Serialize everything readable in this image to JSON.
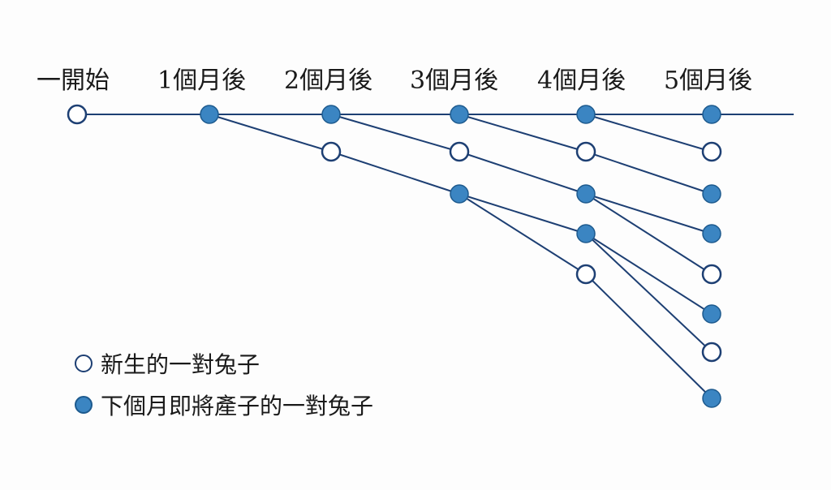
{
  "colors": {
    "line": "#1d3f73",
    "filled_node": "#3b85c2",
    "filled_stroke": "#1d5a8e",
    "open_node_fill": "#ffffff",
    "text": "#1a1a1a"
  },
  "months": [
    {
      "label": "一開始"
    },
    {
      "label": "1個月後"
    },
    {
      "label": "2個月後"
    },
    {
      "label": "3個月後"
    },
    {
      "label": "4個月後"
    },
    {
      "label": "5個月後"
    }
  ],
  "nodes": [
    {
      "id": "m0",
      "month": 0,
      "type": "newborn"
    },
    {
      "id": "m1",
      "month": 1,
      "type": "mature"
    },
    {
      "id": "m2a",
      "month": 2,
      "type": "mature"
    },
    {
      "id": "m2b",
      "month": 2,
      "type": "newborn"
    },
    {
      "id": "m3a",
      "month": 3,
      "type": "mature"
    },
    {
      "id": "m3b",
      "month": 3,
      "type": "newborn"
    },
    {
      "id": "m3c",
      "month": 3,
      "type": "mature"
    },
    {
      "id": "m4a",
      "month": 4,
      "type": "mature"
    },
    {
      "id": "m4b",
      "month": 4,
      "type": "newborn"
    },
    {
      "id": "m4c",
      "month": 4,
      "type": "mature"
    },
    {
      "id": "m4d",
      "month": 4,
      "type": "mature"
    },
    {
      "id": "m4e",
      "month": 4,
      "type": "newborn"
    },
    {
      "id": "m5a",
      "month": 5,
      "type": "mature"
    },
    {
      "id": "m5b",
      "month": 5,
      "type": "newborn"
    },
    {
      "id": "m5c",
      "month": 5,
      "type": "mature"
    },
    {
      "id": "m5d",
      "month": 5,
      "type": "mature"
    },
    {
      "id": "m5e",
      "month": 5,
      "type": "newborn"
    },
    {
      "id": "m5f",
      "month": 5,
      "type": "mature"
    },
    {
      "id": "m5g",
      "month": 5,
      "type": "newborn"
    },
    {
      "id": "m5h",
      "month": 5,
      "type": "mature"
    }
  ],
  "edges": [
    [
      "m0",
      "m1"
    ],
    [
      "m1",
      "m2a"
    ],
    [
      "m1",
      "m2b"
    ],
    [
      "m2a",
      "m3a"
    ],
    [
      "m2a",
      "m3b"
    ],
    [
      "m2b",
      "m3c"
    ],
    [
      "m3a",
      "m4a"
    ],
    [
      "m3a",
      "m4b"
    ],
    [
      "m3b",
      "m4c"
    ],
    [
      "m3c",
      "m4d"
    ],
    [
      "m3c",
      "m4e"
    ],
    [
      "m4a",
      "m5a"
    ],
    [
      "m4a",
      "m5b"
    ],
    [
      "m4b",
      "m5c"
    ],
    [
      "m4c",
      "m5d"
    ],
    [
      "m4c",
      "m5e"
    ],
    [
      "m4d",
      "m5f"
    ],
    [
      "m4d",
      "m5g"
    ],
    [
      "m4e",
      "m5h"
    ]
  ],
  "legend": {
    "newborn_label": "新生的一對兔子",
    "mature_label": "下個月即將產子的一對兔子"
  }
}
